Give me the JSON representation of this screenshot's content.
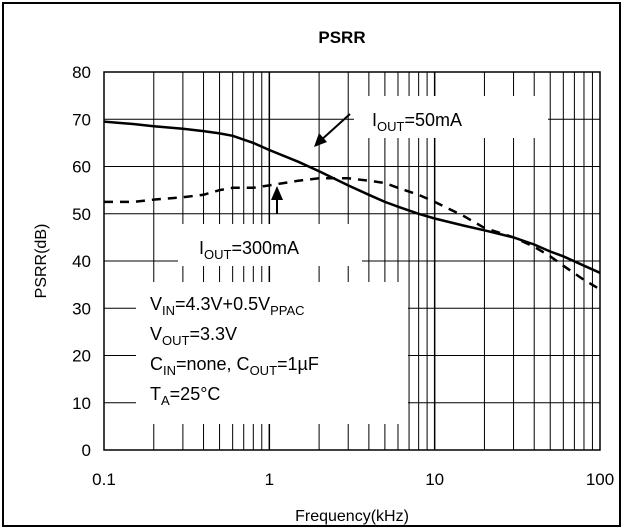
{
  "chart_data": {
    "type": "line",
    "title": "PSRR",
    "xlabel": "Frequency(kHz)",
    "ylabel": "PSRR(dB)",
    "x_scale": "log",
    "xlim": [
      0.1,
      100
    ],
    "ylim": [
      0,
      80
    ],
    "x_ticks": [
      "0.1",
      "1",
      "10",
      "100"
    ],
    "y_ticks": [
      "0",
      "10",
      "20",
      "30",
      "40",
      "50",
      "60",
      "70",
      "80"
    ],
    "grid": true,
    "series": [
      {
        "label": {
          "main": "I",
          "sub": "OUT",
          "rest": "=50mA"
        },
        "style": "solid",
        "color": "#000000",
        "x": [
          0.1,
          0.15,
          0.2,
          0.3,
          0.4,
          0.5,
          0.6,
          0.8,
          1,
          1.5,
          2,
          3,
          4,
          5,
          6,
          8,
          10,
          15,
          20,
          30,
          40,
          50,
          60,
          80,
          100
        ],
        "y": [
          69.5,
          69,
          68.5,
          68,
          67.5,
          67,
          66.5,
          65,
          63.5,
          61,
          59,
          56,
          54,
          52.5,
          51.5,
          50,
          49,
          47.5,
          46.5,
          45,
          43.5,
          42,
          41,
          39,
          37.5
        ]
      },
      {
        "label": {
          "main": "I",
          "sub": "OUT",
          "rest": "=300mA"
        },
        "style": "dashed",
        "color": "#000000",
        "x": [
          0.1,
          0.15,
          0.2,
          0.3,
          0.4,
          0.5,
          0.6,
          0.8,
          1,
          1.5,
          2,
          3,
          4,
          5,
          6,
          8,
          10,
          15,
          20,
          30,
          40,
          50,
          60,
          80,
          100
        ],
        "y": [
          52.5,
          52.5,
          53,
          53.5,
          54,
          55,
          55.5,
          55.5,
          56,
          57,
          57.5,
          57.5,
          57,
          56.5,
          55.5,
          54,
          52.5,
          49.5,
          47,
          45,
          43,
          41,
          39,
          36,
          34
        ]
      }
    ],
    "annotation_lines": [
      [
        {
          "t": "V"
        },
        {
          "t": "IN",
          "sub": true
        },
        {
          "t": "=4.3V+0.5V"
        },
        {
          "t": "PPAC",
          "sub": true
        }
      ],
      [
        {
          "t": "V"
        },
        {
          "t": "OUT",
          "sub": true
        },
        {
          "t": "=3.3V"
        }
      ],
      [
        {
          "t": "C"
        },
        {
          "t": "IN",
          "sub": true
        },
        {
          "t": "=none, C"
        },
        {
          "t": "OUT",
          "sub": true
        },
        {
          "t": "=1µF"
        }
      ],
      [
        {
          "t": "T"
        },
        {
          "t": "A",
          "sub": true
        },
        {
          "t": "=25°C"
        }
      ]
    ]
  }
}
